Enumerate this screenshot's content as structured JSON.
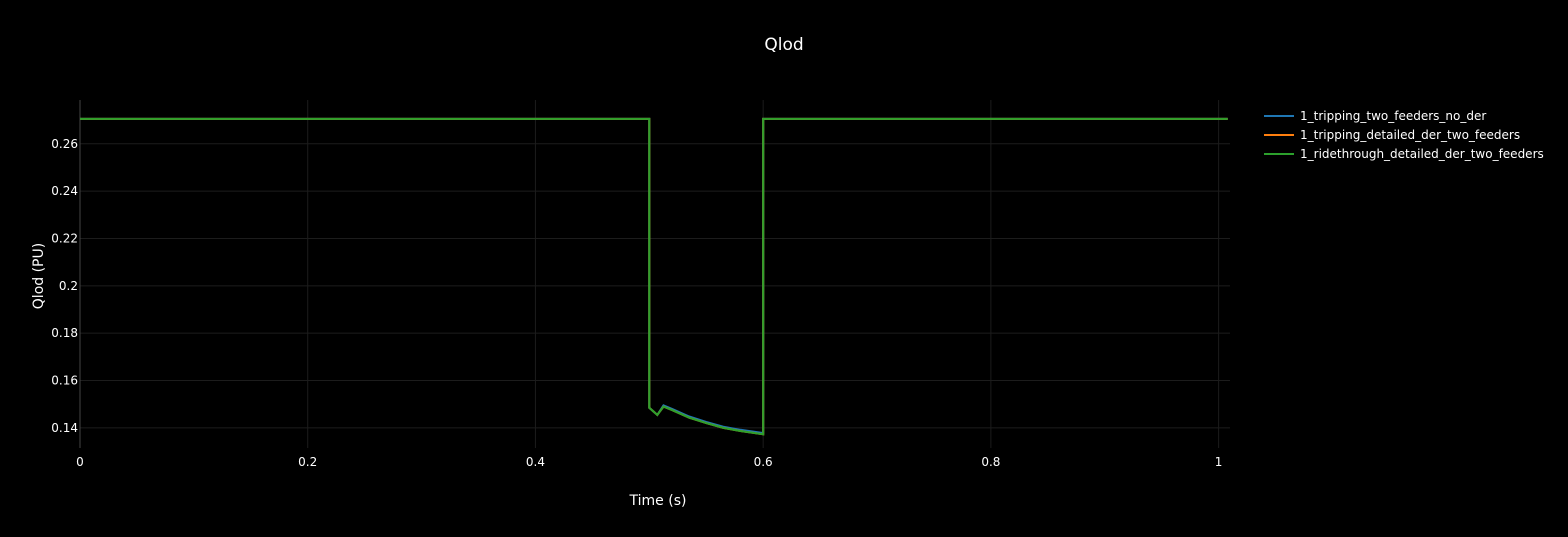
{
  "chart_data": {
    "type": "line",
    "title": "Qlod",
    "xlabel": "Time (s)",
    "ylabel": "Qlod (PU)",
    "xlim": [
      0,
      1.01
    ],
    "ylim": [
      0.1315,
      0.2785
    ],
    "xticks": [
      0,
      0.2,
      0.4,
      0.6,
      0.8,
      1
    ],
    "xtick_labels": [
      "0",
      "0.2",
      "0.4",
      "0.6",
      "0.8",
      "1"
    ],
    "yticks": [
      0.14,
      0.16,
      0.18,
      0.2,
      0.22,
      0.24,
      0.26
    ],
    "ytick_labels": [
      "0.14",
      "0.16",
      "0.18",
      "0.2",
      "0.22",
      "0.24",
      "0.26"
    ],
    "grid": true,
    "legend_position": "top-right outside",
    "series": [
      {
        "name": "1_tripping_two_feeders_no_der",
        "color": "#1f77b4",
        "x": [
          0,
          0.5,
          0.5,
          0.507,
          0.5125,
          0.52,
          0.535,
          0.55,
          0.565,
          0.58,
          0.6,
          0.6,
          1.008
        ],
        "y": [
          0.2705,
          0.2705,
          0.1485,
          0.1455,
          0.1495,
          0.148,
          0.1448,
          0.1425,
          0.1405,
          0.1392,
          0.1378,
          0.2705,
          0.2705
        ]
      },
      {
        "name": "1_tripping_detailed_der_two_feeders",
        "color": "#ff7f0e",
        "x": [
          0,
          0.5,
          0.5,
          0.507,
          0.5125,
          0.52,
          0.535,
          0.55,
          0.565,
          0.58,
          0.6,
          0.6,
          1.008
        ],
        "y": [
          0.2705,
          0.2705,
          0.1485,
          0.1455,
          0.149,
          0.1475,
          0.1443,
          0.142,
          0.14,
          0.1387,
          0.1373,
          0.2705,
          0.2705
        ]
      },
      {
        "name": "1_ridethrough_detailed_der_two_feeders",
        "color": "#2ca02c",
        "x": [
          0,
          0.5,
          0.5,
          0.507,
          0.5125,
          0.52,
          0.535,
          0.55,
          0.565,
          0.58,
          0.6,
          0.6,
          1.008
        ],
        "y": [
          0.2705,
          0.2705,
          0.1485,
          0.1455,
          0.149,
          0.1475,
          0.1443,
          0.142,
          0.14,
          0.1387,
          0.1373,
          0.2705,
          0.2705
        ]
      }
    ]
  },
  "colors": {
    "background": "#000000",
    "grid": "#1c1c1c",
    "axis": "#444444",
    "text": "#ffffff"
  }
}
